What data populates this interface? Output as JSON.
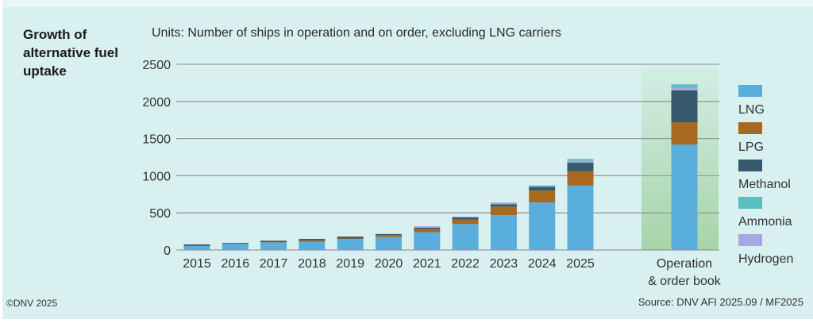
{
  "header": {
    "title": "Growth of alternative fuel uptake",
    "units": "Units: Number of ships in operation and on order, excluding LNG carriers"
  },
  "footer": {
    "copyright": "©DNV 2025",
    "source": "Source: DNV AFI 2025.09 / MF2025"
  },
  "chart_data": {
    "type": "bar",
    "stacked": true,
    "title": "Growth of alternative fuel uptake",
    "subtitle": "Units: Number of ships in operation and on order, excluding LNG carriers",
    "xlabel": "",
    "ylabel": "",
    "ylim": [
      0,
      2500
    ],
    "yticks": [
      0,
      500,
      1000,
      1500,
      2000,
      2500
    ],
    "grid": true,
    "legend_position": "right",
    "categories": [
      "2015",
      "2016",
      "2017",
      "2018",
      "2019",
      "2020",
      "2021",
      "2022",
      "2023",
      "2024",
      "2025",
      "Operation & order book"
    ],
    "highlighted_category": "Operation & order book",
    "series": [
      {
        "name": "LNG",
        "color": "#5aaedb",
        "values": [
          55,
          85,
          100,
          110,
          150,
          175,
          240,
          350,
          470,
          640,
          870,
          1420
        ]
      },
      {
        "name": "LPG",
        "color": "#a8691f",
        "values": [
          0,
          0,
          5,
          20,
          5,
          25,
          40,
          60,
          115,
          160,
          190,
          300
        ]
      },
      {
        "name": "Methanol",
        "color": "#365a6c",
        "values": [
          20,
          10,
          20,
          20,
          25,
          15,
          20,
          30,
          30,
          50,
          115,
          430
        ]
      },
      {
        "name": "Ammonia",
        "color": "#5abfbc",
        "values": [
          0,
          0,
          0,
          0,
          0,
          0,
          0,
          0,
          0,
          10,
          25,
          50
        ]
      },
      {
        "name": "Hydrogen",
        "color": "#a7a6e0",
        "values": [
          0,
          0,
          0,
          0,
          0,
          0,
          20,
          10,
          25,
          10,
          25,
          30
        ]
      }
    ],
    "stack_order": [
      "LNG",
      "LPG",
      "Methanol",
      "Hydrogen",
      "Ammonia"
    ]
  }
}
